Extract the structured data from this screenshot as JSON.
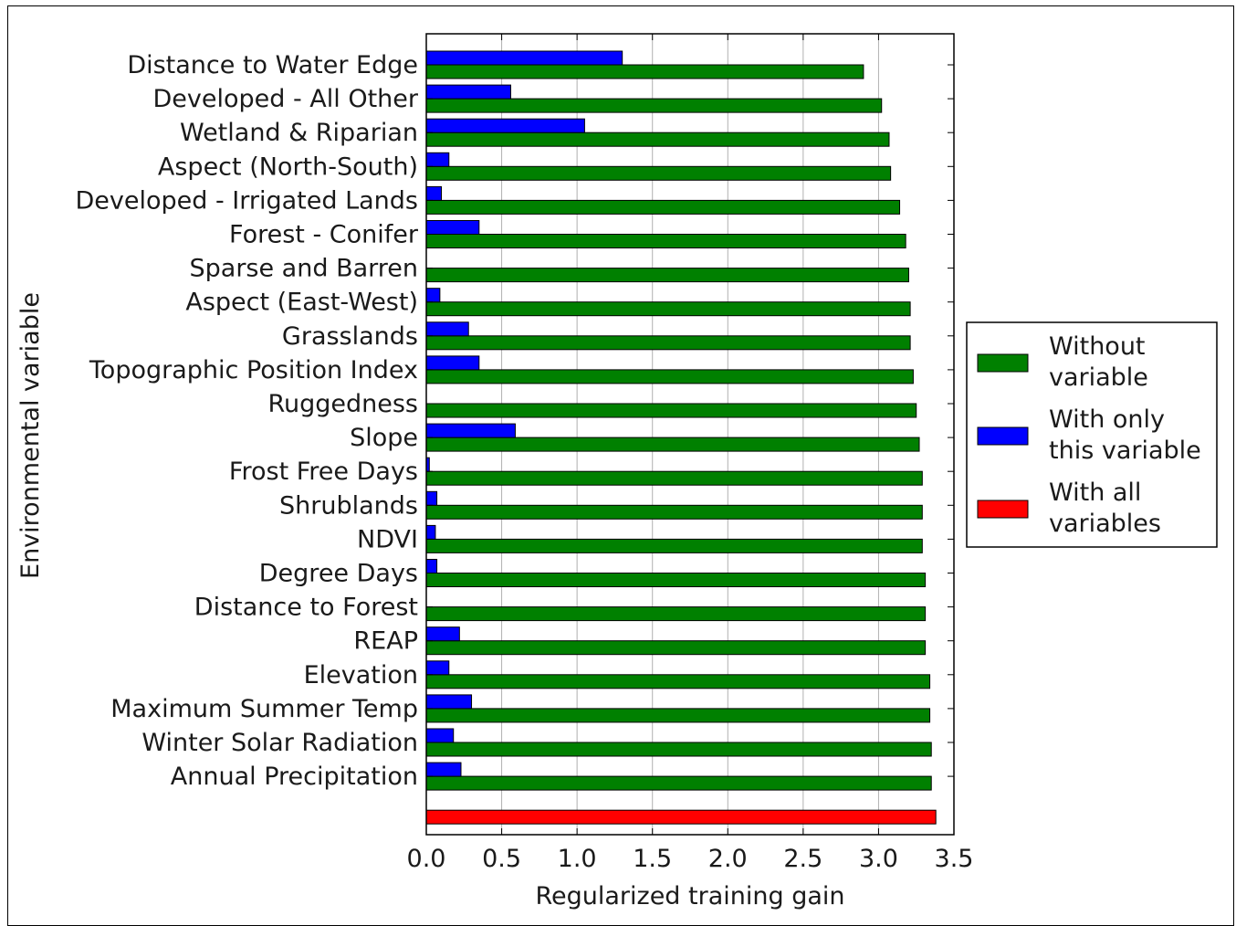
{
  "chart_data": {
    "type": "bar",
    "orientation": "horizontal",
    "title": "",
    "xlabel": "Regularized training gain",
    "ylabel": "Environmental variable",
    "xlim": [
      0,
      3.5
    ],
    "xticks": [
      0.0,
      0.5,
      1.0,
      1.5,
      2.0,
      2.5,
      3.0,
      3.5
    ],
    "xtick_labels": [
      "0.0",
      "0.5",
      "1.0",
      "1.5",
      "2.0",
      "2.5",
      "3.0",
      "3.5"
    ],
    "grid": "vertical",
    "legend_position": "right",
    "categories": [
      "Distance to Water Edge",
      "Developed - All Other",
      "Wetland & Riparian",
      "Aspect (North-South)",
      "Developed - Irrigated Lands",
      "Forest - Conifer",
      "Sparse and Barren",
      "Aspect (East-West)",
      "Grasslands",
      "Topographic Position Index",
      "Ruggedness",
      "Slope",
      "Frost Free Days",
      "Shrublands",
      "NDVI",
      "Degree Days",
      "Distance to Forest",
      "REAP",
      "Elevation",
      "Maximum Summer Temp",
      "Winter Solar Radiation",
      "Annual Precipitation"
    ],
    "series": [
      {
        "name": "Without variable",
        "color": "#008000",
        "values": [
          2.9,
          3.02,
          3.07,
          3.08,
          3.14,
          3.18,
          3.2,
          3.21,
          3.21,
          3.23,
          3.25,
          3.27,
          3.29,
          3.29,
          3.29,
          3.31,
          3.31,
          3.31,
          3.34,
          3.34,
          3.35,
          3.35
        ]
      },
      {
        "name": "With only this variable",
        "color": "#0000ff",
        "values": [
          1.3,
          0.56,
          1.05,
          0.15,
          0.1,
          0.35,
          0.0,
          0.09,
          0.28,
          0.35,
          0.0,
          0.59,
          0.02,
          0.07,
          0.06,
          0.07,
          0.0,
          0.22,
          0.15,
          0.3,
          0.18,
          0.23
        ]
      },
      {
        "name": "With all variables",
        "color": "#ff0000",
        "value": 3.38
      }
    ],
    "legend": [
      {
        "line1": "Without",
        "line2": "variable",
        "color": "#008000"
      },
      {
        "line1": "With only",
        "line2": "this variable",
        "color": "#0000ff"
      },
      {
        "line1": "With all",
        "line2": "variables",
        "color": "#ff0000"
      }
    ]
  }
}
